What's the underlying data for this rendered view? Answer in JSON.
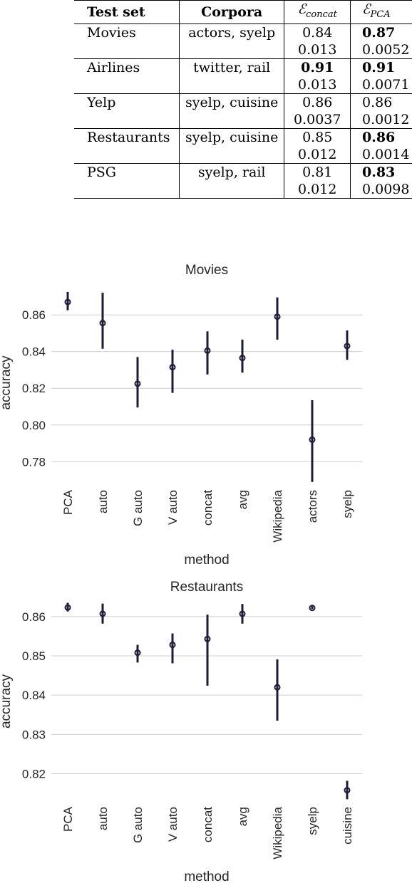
{
  "table": {
    "headers": {
      "test_set": "Test set",
      "corpora": "Corpora",
      "concat_symbol": "ℰ",
      "concat_sub": "concat",
      "pca_symbol": "ℰ",
      "pca_sub": "PCA"
    },
    "rows": [
      {
        "test_set": "Movies",
        "corpora": "actors, syelp",
        "concat_mean": "0.84",
        "concat_std": "0.013",
        "pca_mean": "0.87",
        "pca_std": "0.0052",
        "concat_bold": false,
        "pca_bold": true
      },
      {
        "test_set": "Airlines",
        "corpora": "twitter, rail",
        "concat_mean": "0.91",
        "concat_std": "0.013",
        "pca_mean": "0.91",
        "pca_std": "0.0071",
        "concat_bold": true,
        "pca_bold": true
      },
      {
        "test_set": "Yelp",
        "corpora": "syelp, cuisine",
        "concat_mean": "0.86",
        "concat_std": "0.0037",
        "pca_mean": "0.86",
        "pca_std": "0.0012",
        "concat_bold": false,
        "pca_bold": false
      },
      {
        "test_set": "Restaurants",
        "corpora": "syelp, cuisine",
        "concat_mean": "0.85",
        "concat_std": "0.012",
        "pca_mean": "0.86",
        "pca_std": "0.0014",
        "concat_bold": false,
        "pca_bold": true
      },
      {
        "test_set": "PSG",
        "corpora": "syelp, rail",
        "concat_mean": "0.81",
        "concat_std": "0.012",
        "pca_mean": "0.83",
        "pca_std": "0.0098",
        "concat_bold": false,
        "pca_bold": true
      }
    ]
  },
  "chart_data": [
    {
      "type": "scatter",
      "title": "Movies",
      "xlabel": "method",
      "ylabel": "accuracy",
      "categories": [
        "PCA",
        "auto",
        "G auto",
        "V auto",
        "concat",
        "avg",
        "Wikipedia",
        "actors",
        "syelp"
      ],
      "values": [
        0.867,
        0.8555,
        0.8225,
        0.8315,
        0.8405,
        0.8365,
        0.859,
        0.792,
        0.843
      ],
      "lower": [
        0.8625,
        0.8415,
        0.8095,
        0.8175,
        0.8275,
        0.8285,
        0.8465,
        0.769,
        0.8355
      ],
      "upper": [
        0.8725,
        0.872,
        0.837,
        0.841,
        0.851,
        0.8465,
        0.8695,
        0.8135,
        0.8515
      ],
      "yticks": [
        "0.78",
        "0.80",
        "0.82",
        "0.84",
        "0.86"
      ],
      "ylim": [
        0.7685,
        0.8775
      ],
      "grid": true,
      "color": "#1c1c36"
    },
    {
      "type": "scatter",
      "title": "Restaurants",
      "xlabel": "method",
      "ylabel": "accuracy",
      "categories": [
        "PCA",
        "auto",
        "G auto",
        "V auto",
        "concat",
        "avg",
        "Wikipedia",
        "syelp",
        "cuisine"
      ],
      "values": [
        0.8623,
        0.8607,
        0.8508,
        0.8528,
        0.8543,
        0.8607,
        0.842,
        0.8622,
        0.8158
      ],
      "lower": [
        0.8613,
        0.8582,
        0.8483,
        0.8481,
        0.8424,
        0.8582,
        0.8335,
        0.8619,
        0.8135
      ],
      "upper": [
        0.8635,
        0.8633,
        0.8528,
        0.8557,
        0.8605,
        0.8632,
        0.8491,
        0.8626,
        0.8182
      ],
      "yticks": [
        "0.82",
        "0.83",
        "0.84",
        "0.85",
        "0.86"
      ],
      "ylim": [
        0.8123,
        0.8645
      ],
      "grid": true,
      "color": "#1c1c36"
    }
  ]
}
